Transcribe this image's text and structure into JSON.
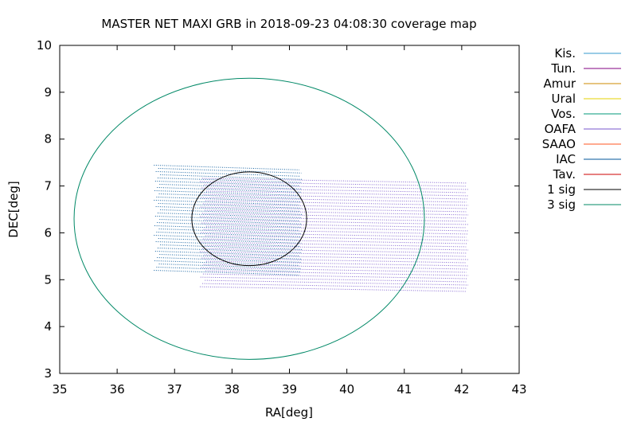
{
  "chart_data": {
    "type": "scatter",
    "title": "MASTER NET MAXI GRB in 2018-09-23 04:08:30 coverage map",
    "xlabel": "RA[deg]",
    "ylabel": "DEC[deg]",
    "xlim": [
      35,
      43
    ],
    "ylim": [
      3,
      10
    ],
    "xticks": [
      "35",
      "36",
      "37",
      "38",
      "39",
      "40",
      "41",
      "42",
      "43"
    ],
    "yticks": [
      "3",
      "4",
      "5",
      "6",
      "7",
      "8",
      "9",
      "10"
    ],
    "grid": false,
    "legend_position": "outside-right",
    "legend": [
      {
        "name": "Kis.",
        "color": "#3399cc"
      },
      {
        "name": "Tun.",
        "color": "#800080"
      },
      {
        "name": "Amur",
        "color": "#cc8800"
      },
      {
        "name": "Ural",
        "color": "#e6d200"
      },
      {
        "name": "Vos.",
        "color": "#00997a"
      },
      {
        "name": "OAFA",
        "color": "#7755cc"
      },
      {
        "name": "SAAO",
        "color": "#ff5522"
      },
      {
        "name": "IAC",
        "color": "#005599"
      },
      {
        "name": "Tav.",
        "color": "#cc0000"
      },
      {
        "name": "1 sig",
        "color": "#000000"
      },
      {
        "name": "3 sig",
        "color": "#008866"
      }
    ],
    "coverage_fields": [
      {
        "series": "IAC",
        "ra_min": 36.7,
        "ra_max": 39.2,
        "dec_min": 5.15,
        "dec_max": 7.45
      },
      {
        "series": "OAFA",
        "ra_min": 37.5,
        "ra_max": 42.1,
        "dec_min": 4.8,
        "dec_max": 7.15
      }
    ],
    "error_circles": [
      {
        "series": "1 sig",
        "ra_center": 38.3,
        "dec_center": 6.3,
        "ra_radius": 1.0,
        "dec_radius": 1.0
      },
      {
        "series": "3 sig",
        "ra_center": 38.3,
        "dec_center": 6.3,
        "ra_radius": 3.05,
        "dec_radius": 3.0
      }
    ]
  }
}
